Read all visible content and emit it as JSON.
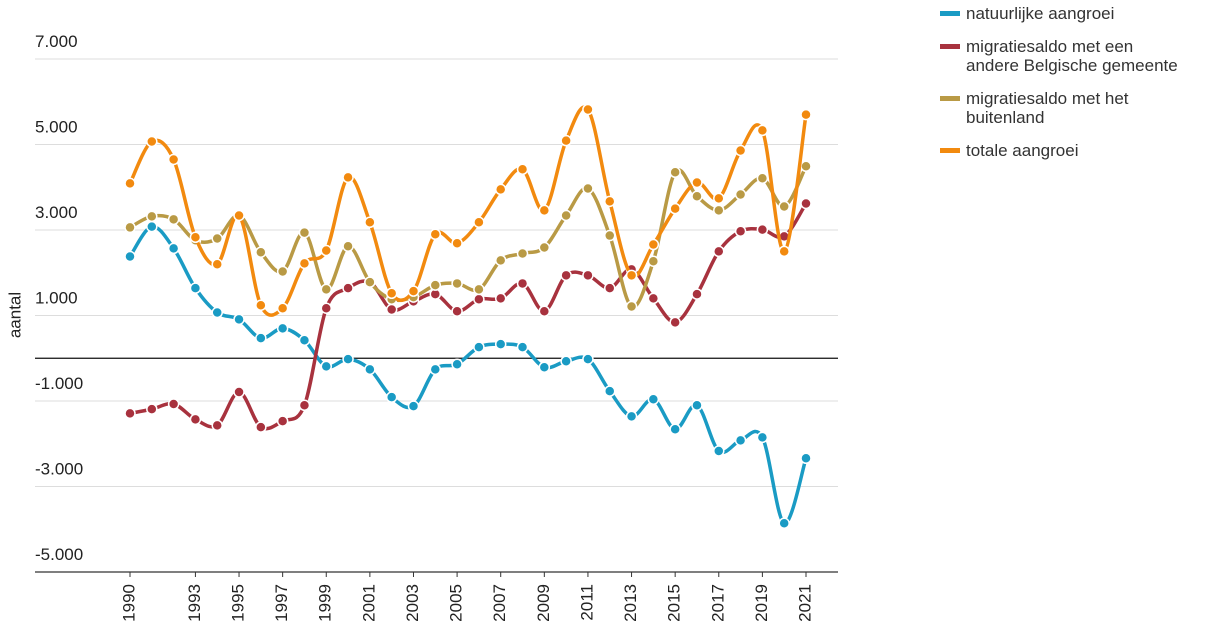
{
  "chart_data": {
    "type": "line",
    "y_label": "aantal",
    "x": [
      1990,
      1991,
      1992,
      1993,
      1994,
      1995,
      1996,
      1997,
      1998,
      1999,
      2000,
      2001,
      2002,
      2003,
      2004,
      2005,
      2006,
      2007,
      2008,
      2009,
      2010,
      2011,
      2012,
      2013,
      2014,
      2015,
      2016,
      2017,
      2018,
      2019,
      2020,
      2021
    ],
    "xlim": [
      1990,
      2021
    ],
    "xticks": [
      1990,
      1993,
      1995,
      1997,
      1999,
      2001,
      2003,
      2005,
      2007,
      2009,
      2011,
      2013,
      2015,
      2017,
      2019,
      2021
    ],
    "ylim": [
      -5000,
      7000
    ],
    "yticks": [
      {
        "value": -5000,
        "label": "-5.000"
      },
      {
        "value": -3000,
        "label": "-3.000"
      },
      {
        "value": -1000,
        "label": "-1.000"
      },
      {
        "value": 1000,
        "label": "1.000"
      },
      {
        "value": 3000,
        "label": "3.000"
      },
      {
        "value": 5000,
        "label": "5.000"
      },
      {
        "value": 7000,
        "label": "7.000"
      }
    ],
    "grid": true,
    "legend": "right",
    "series": [
      {
        "name": "natuurlijke aangroei",
        "color": "#1a9bc4",
        "values": [
          2380,
          3080,
          2570,
          1640,
          1070,
          910,
          470,
          700,
          420,
          -190,
          -20,
          -260,
          -910,
          -1120,
          -260,
          -140,
          260,
          330,
          260,
          -210,
          -70,
          -20,
          -770,
          -1360,
          -960,
          -1660,
          -1100,
          -2170,
          -1920,
          -1850,
          -3860,
          -2340
        ]
      },
      {
        "name": "migratiesaldo met een andere Belgische gemeente",
        "color": "#a8323e",
        "values": [
          -1290,
          -1190,
          -1070,
          -1430,
          -1570,
          -790,
          -1610,
          -1470,
          -1100,
          1170,
          1640,
          1780,
          1140,
          1330,
          1500,
          1100,
          1380,
          1400,
          1750,
          1100,
          1940,
          1940,
          1640,
          2080,
          1400,
          840,
          1500,
          2500,
          2970,
          3010,
          2850,
          3620
        ]
      },
      {
        "name": "migratiesaldo met het buitenland",
        "color": "#b99a45",
        "values": [
          3060,
          3320,
          3250,
          2760,
          2800,
          3340,
          2480,
          2030,
          2940,
          1610,
          2620,
          1780,
          1380,
          1430,
          1710,
          1750,
          1610,
          2290,
          2450,
          2590,
          3340,
          3970,
          2870,
          1210,
          2270,
          4350,
          3790,
          3460,
          3830,
          4210,
          3550,
          4490
        ]
      },
      {
        "name": "totale aangroei",
        "color": "#f28a0f",
        "values": [
          4090,
          5070,
          4650,
          2830,
          2200,
          3340,
          1240,
          1170,
          2220,
          2520,
          4230,
          3180,
          1520,
          1570,
          2900,
          2690,
          3180,
          3950,
          4420,
          3460,
          5090,
          5820,
          3670,
          1940,
          2660,
          3500,
          4110,
          3740,
          4860,
          5330,
          2500,
          5700
        ]
      }
    ]
  }
}
